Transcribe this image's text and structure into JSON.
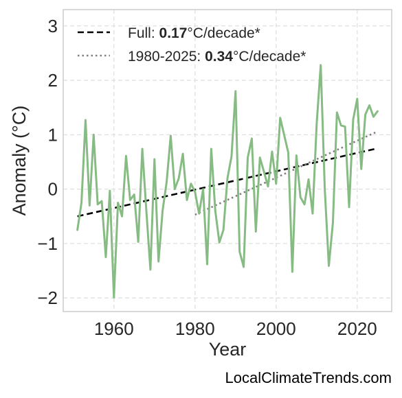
{
  "chart_data": {
    "type": "line",
    "xlabel": "Year",
    "ylabel": "Anomaly (°C)",
    "xlim": [
      1947.5,
      2028.5
    ],
    "ylim": [
      -2.25,
      3.3
    ],
    "xticks": [
      1960,
      1980,
      2000,
      2020
    ],
    "xtick_labels": [
      "1960",
      "1980",
      "2000",
      "2020"
    ],
    "yticks": [
      -2,
      -1,
      0,
      1,
      2,
      3
    ],
    "ytick_labels": [
      "−2",
      "−1",
      "0",
      "1",
      "2",
      "3"
    ],
    "grid": true,
    "legend_position": "top-left",
    "series": [
      {
        "role": "data",
        "color": "#86bb83",
        "x": [
          1951,
          1952,
          1953,
          1954,
          1955,
          1956,
          1957,
          1958,
          1959,
          1960,
          1961,
          1962,
          1963,
          1964,
          1965,
          1966,
          1967,
          1968,
          1969,
          1970,
          1971,
          1972,
          1973,
          1974,
          1975,
          1976,
          1977,
          1978,
          1979,
          1980,
          1981,
          1982,
          1983,
          1984,
          1985,
          1986,
          1987,
          1988,
          1989,
          1990,
          1991,
          1992,
          1993,
          1994,
          1995,
          1996,
          1997,
          1998,
          1999,
          2000,
          2001,
          2002,
          2003,
          2004,
          2005,
          2006,
          2007,
          2008,
          2009,
          2010,
          2011,
          2012,
          2013,
          2014,
          2015,
          2016,
          2017,
          2018,
          2019,
          2020,
          2021,
          2022,
          2023,
          2024,
          2025
        ],
        "y": [
          -0.75,
          -0.25,
          1.27,
          -0.3,
          1.0,
          -0.28,
          -0.22,
          -1.25,
          -0.03,
          -1.99,
          -0.25,
          -0.5,
          0.61,
          -0.2,
          -0.1,
          -0.97,
          0.74,
          -0.4,
          -1.48,
          0.55,
          -1.33,
          -0.4,
          0.13,
          0.98,
          0.0,
          0.2,
          0.65,
          -0.2,
          0.1,
          -0.05,
          -0.45,
          0.0,
          -1.38,
          0.74,
          -0.4,
          -0.98,
          -0.75,
          0.2,
          0.6,
          1.8,
          -1.15,
          -1.43,
          0.58,
          0.93,
          -0.78,
          0.58,
          0.32,
          0.05,
          0.69,
          0.1,
          1.31,
          0.99,
          0.67,
          -1.52,
          0.62,
          -0.15,
          -0.28,
          0.18,
          -0.45,
          1.2,
          2.28,
          0.0,
          -1.41,
          -0.62,
          1.41,
          1.17,
          1.15,
          -0.33,
          1.28,
          1.66,
          0.37,
          1.37,
          1.54,
          1.33,
          1.43
        ]
      },
      {
        "role": "trend",
        "color": "#000000",
        "dash": "dashed",
        "x": [
          1951,
          2025
        ],
        "y": [
          -0.5,
          0.75
        ]
      },
      {
        "role": "trend",
        "color": "#7f7f7f",
        "dash": "dotted",
        "x": [
          1980,
          2025
        ],
        "y": [
          -0.47,
          1.06
        ]
      }
    ],
    "legend": [
      {
        "label_prefix": "Full: ",
        "label_bold": "0.17",
        "label_suffix": "°C/decade*",
        "color": "#000000",
        "dash": "dashed"
      },
      {
        "label_prefix": "1980-2025: ",
        "label_bold": "0.34",
        "label_suffix": "°C/decade*",
        "color": "#7f7f7f",
        "dash": "dotted"
      }
    ]
  },
  "credit": "LocalClimateTrends.com"
}
